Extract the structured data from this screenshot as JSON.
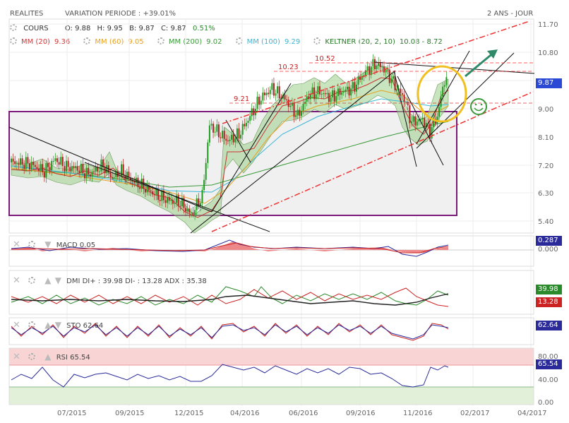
{
  "header": {
    "symbol": "REALITES",
    "variation_label": "VARIATION PERIODE : +39.01%",
    "period": "2 ANS - JOUR"
  },
  "ohlc": {
    "label": "COURS",
    "open": "O: 9.88",
    "high": "H: 9.95",
    "low": "B: 9.87",
    "close": "C: 9.87",
    "change": "0.51%"
  },
  "indicators": [
    {
      "label": "MM (20)",
      "value": "9.36",
      "color": "#d33"
    },
    {
      "label": "MM (60)",
      "value": "9.05",
      "color": "#e8a020"
    },
    {
      "label": "MM (200)",
      "value": "9.02",
      "color": "#3a9a3a"
    },
    {
      "label": "MM (100)",
      "value": "9.29",
      "color": "#38b6d6"
    },
    {
      "label": "KELTNER (20, 2, 10)",
      "value": "10.08 - 8.72",
      "color": "#2a7a2a"
    }
  ],
  "levels": {
    "l1": "10.52",
    "l2": "10.23",
    "l3": "9.21"
  },
  "last_price": "9.87",
  "macd": {
    "label": "MACD",
    "value": "0.05",
    "box": "0.287",
    "zero": "0.000"
  },
  "dmi": {
    "label": "DMI",
    "plus": "DI+ : 39.98",
    "minus": "DI- : 13.28",
    "adx": "ADX : 35.38",
    "box_plus": "39.98",
    "box_minus": "13.28"
  },
  "sto": {
    "label": "STO",
    "value": "62.64",
    "box": "62.64"
  },
  "rsi": {
    "label": "RSI",
    "value": "65.54",
    "box": "65.54",
    "top_tick": "80.00",
    "mid_tick": "40.00",
    "bot_tick": "0.00"
  },
  "colors": {
    "macd": "#2a2a9a",
    "dmi_plus": "#2a8a2a",
    "dmi_minus": "#c22",
    "sto": "#2a2a9a",
    "rsi": "#2a2a9a",
    "price": "#2a2a9a"
  },
  "chart_data": {
    "type": "candlestick",
    "x_ticks": [
      "07/2015",
      "09/2015",
      "12/2015",
      "04/2016",
      "06/2016",
      "09/2016",
      "11/2016",
      "02/2017",
      "04/2017"
    ],
    "y_ticks": [
      "11.70",
      "10.80",
      "9.00",
      "8.10",
      "7.20",
      "6.30",
      "5.40"
    ],
    "ylim": [
      4.9,
      11.7
    ],
    "price_path": [
      [
        0,
        7.2
      ],
      [
        10,
        7.15
      ],
      [
        18,
        6.9
      ],
      [
        24,
        7.3
      ],
      [
        30,
        7.05
      ],
      [
        36,
        7.0
      ],
      [
        42,
        6.8
      ],
      [
        50,
        7.1
      ],
      [
        55,
        6.7
      ],
      [
        60,
        6.9
      ],
      [
        66,
        6.6
      ],
      [
        72,
        6.4
      ],
      [
        80,
        6.1
      ],
      [
        86,
        5.95
      ],
      [
        92,
        5.9
      ],
      [
        98,
        5.5
      ],
      [
        104,
        6.1
      ],
      [
        108,
        8.4
      ],
      [
        112,
        8.2
      ],
      [
        118,
        7.9
      ],
      [
        124,
        8.1
      ],
      [
        130,
        8.7
      ],
      [
        136,
        9.3
      ],
      [
        142,
        9.6
      ],
      [
        150,
        9.2
      ],
      [
        156,
        8.7
      ],
      [
        162,
        9.4
      ],
      [
        168,
        9.5
      ],
      [
        174,
        9.3
      ],
      [
        180,
        9.5
      ],
      [
        186,
        9.6
      ],
      [
        192,
        10.1
      ],
      [
        198,
        10.4
      ],
      [
        202,
        10.3
      ],
      [
        206,
        10.0
      ],
      [
        210,
        9.6
      ],
      [
        214,
        9.3
      ],
      [
        218,
        8.5
      ],
      [
        224,
        8.6
      ],
      [
        228,
        8.2
      ],
      [
        232,
        8.7
      ],
      [
        236,
        9.9
      ],
      [
        238,
        9.87
      ]
    ]
  }
}
